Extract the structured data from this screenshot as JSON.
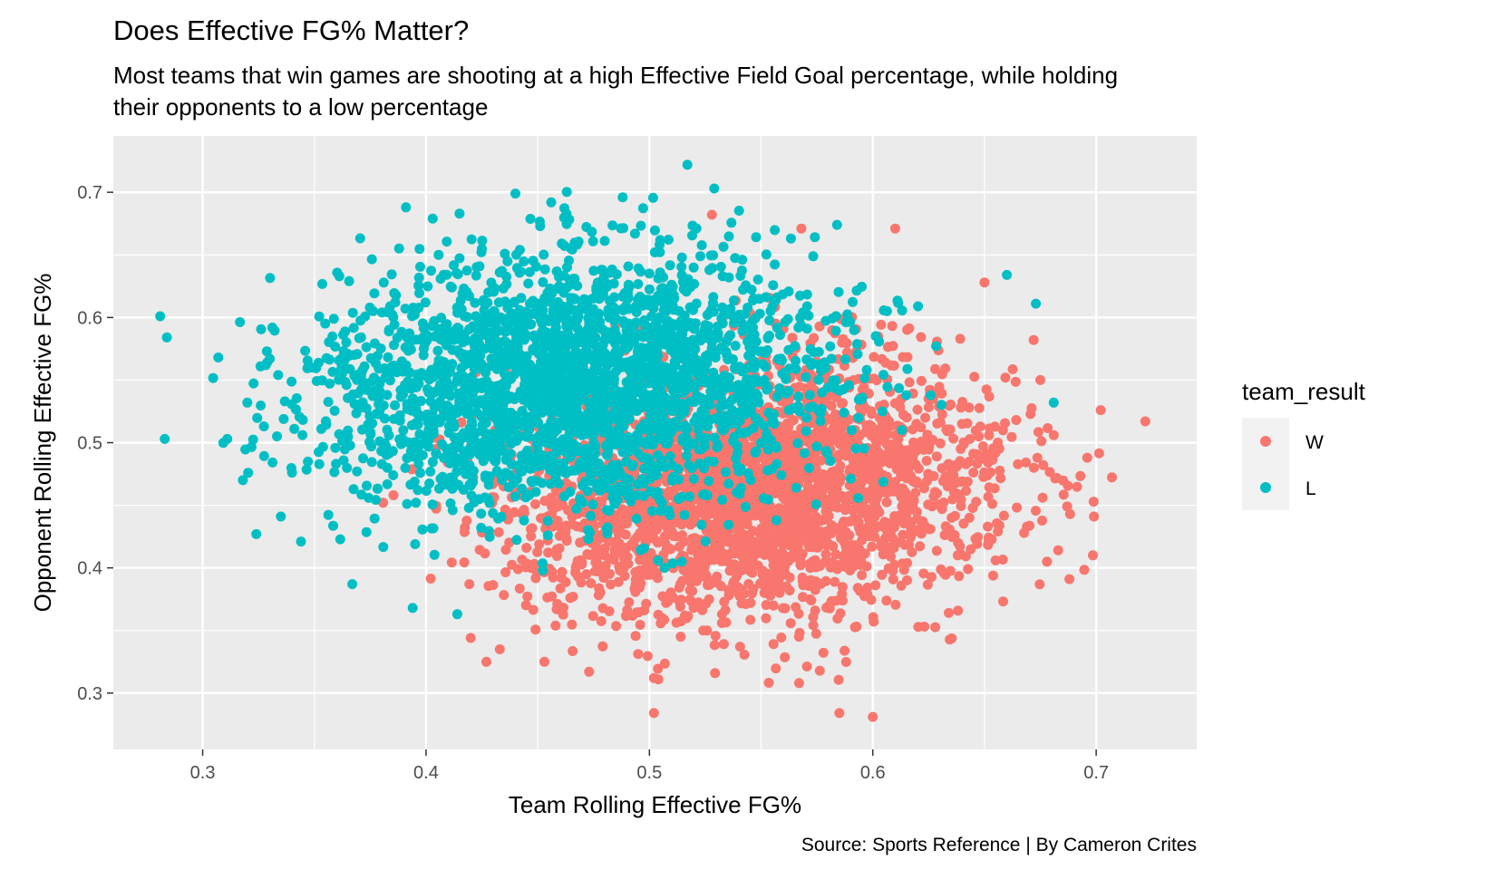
{
  "chart_data": {
    "type": "scatter",
    "title": "Does Effective FG% Matter?",
    "subtitle_lines": [
      "Most teams that win games are shooting at a high Effective Field Goal percentage, while holding",
      "their opponents to a low percentage"
    ],
    "xlabel": "Team Rolling Effective FG%",
    "ylabel": "Opponent Rolling Effective FG%",
    "caption": "Source: Sports Reference | By Cameron Crites",
    "xlim": [
      0.26,
      0.745
    ],
    "ylim": [
      0.255,
      0.745
    ],
    "x_ticks": [
      0.3,
      0.4,
      0.5,
      0.6,
      0.7
    ],
    "x_tick_labels": [
      "0.3",
      "0.4",
      "0.5",
      "0.6",
      "0.7"
    ],
    "y_ticks": [
      0.3,
      0.4,
      0.5,
      0.6,
      0.7
    ],
    "y_tick_labels": [
      "0.3",
      "0.4",
      "0.5",
      "0.6",
      "0.7"
    ],
    "grid": true,
    "legend": {
      "title": "team_result",
      "placement": "right"
    },
    "series": [
      {
        "name": "W",
        "color": "#F8766D",
        "cluster": {
          "mean_x": 0.545,
          "mean_y": 0.462,
          "sd_x": 0.055,
          "sd_y": 0.052,
          "rho": 0.1,
          "count": 2800
        },
        "points": [
          [
            0.722,
            0.517
          ],
          [
            0.702,
            0.526
          ],
          [
            0.699,
            0.441
          ],
          [
            0.696,
            0.488
          ],
          [
            0.688,
            0.391
          ],
          [
            0.683,
            0.414
          ],
          [
            0.678,
            0.405
          ],
          [
            0.681,
            0.506
          ],
          [
            0.675,
            0.55
          ],
          [
            0.672,
            0.582
          ],
          [
            0.655,
            0.406
          ],
          [
            0.638,
            0.41
          ],
          [
            0.61,
            0.671
          ],
          [
            0.568,
            0.671
          ],
          [
            0.6,
            0.281
          ],
          [
            0.585,
            0.284
          ],
          [
            0.502,
            0.284
          ],
          [
            0.502,
            0.312
          ],
          [
            0.567,
            0.308
          ],
          [
            0.528,
            0.682
          ],
          [
            0.433,
            0.335
          ],
          [
            0.453,
            0.325
          ],
          [
            0.473,
            0.317
          ],
          [
            0.427,
            0.325
          ],
          [
            0.42,
            0.344
          ],
          [
            0.634,
            0.364
          ],
          [
            0.65,
            0.628
          ]
        ]
      },
      {
        "name": "L",
        "color": "#00BFC4",
        "cluster": {
          "mean_x": 0.465,
          "mean_y": 0.548,
          "sd_x": 0.058,
          "sd_y": 0.052,
          "rho": 0.08,
          "count": 2600
        },
        "points": [
          [
            0.281,
            0.601
          ],
          [
            0.284,
            0.584
          ],
          [
            0.283,
            0.503
          ],
          [
            0.311,
            0.503
          ],
          [
            0.307,
            0.568
          ],
          [
            0.324,
            0.427
          ],
          [
            0.335,
            0.441
          ],
          [
            0.344,
            0.421
          ],
          [
            0.517,
            0.722
          ],
          [
            0.529,
            0.703
          ],
          [
            0.44,
            0.699
          ],
          [
            0.391,
            0.688
          ],
          [
            0.488,
            0.696
          ],
          [
            0.403,
            0.679
          ],
          [
            0.415,
            0.683
          ],
          [
            0.66,
            0.634
          ],
          [
            0.681,
            0.532
          ],
          [
            0.673,
            0.611
          ],
          [
            0.394,
            0.368
          ],
          [
            0.367,
            0.387
          ],
          [
            0.414,
            0.363
          ],
          [
            0.318,
            0.47
          ],
          [
            0.32,
            0.532
          ],
          [
            0.584,
            0.674
          ]
        ]
      }
    ]
  }
}
